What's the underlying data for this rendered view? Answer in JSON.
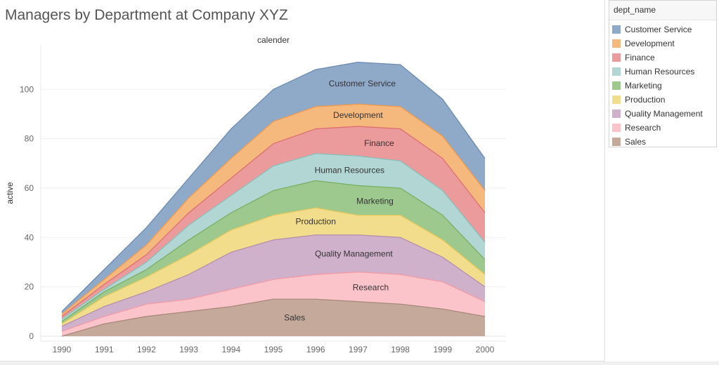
{
  "title": "Managers by Department at Company XYZ",
  "legend": {
    "title": "dept_name",
    "items": [
      {
        "label": "Customer Service",
        "color": "#8fa9c8"
      },
      {
        "label": "Development",
        "color": "#f5b87d"
      },
      {
        "label": "Finance",
        "color": "#eb9b9c"
      },
      {
        "label": "Human Resources",
        "color": "#b2d6d3"
      },
      {
        "label": "Marketing",
        "color": "#9ec98e"
      },
      {
        "label": "Production",
        "color": "#f2dd8c"
      },
      {
        "label": "Quality Management",
        "color": "#d0b1cb"
      },
      {
        "label": "Research",
        "color": "#fbc4ca"
      },
      {
        "label": "Sales",
        "color": "#c5aa9c"
      }
    ]
  },
  "chart_data": {
    "type": "area",
    "stacked": true,
    "title": "Managers by Department at Company XYZ",
    "column_header": "calender",
    "xlabel": "",
    "ylabel": "active",
    "x": [
      1990,
      1991,
      1992,
      1993,
      1994,
      1995,
      1996,
      1997,
      1998,
      1999,
      2000
    ],
    "x_ticks": [
      "1990",
      "1991",
      "1992",
      "1993",
      "1994",
      "1995",
      "1996",
      "1997",
      "1998",
      "1999",
      "2000"
    ],
    "y_ticks": [
      "0",
      "20",
      "40",
      "60",
      "80",
      "100"
    ],
    "ylim": [
      -2,
      118
    ],
    "stack_order": [
      "Sales",
      "Research",
      "Quality Management",
      "Production",
      "Marketing",
      "Human Resources",
      "Finance",
      "Development",
      "Customer Service"
    ],
    "series": [
      {
        "name": "Sales",
        "color": "#c5aa9c",
        "line": "#a8897a",
        "values": [
          0,
          5,
          8,
          10,
          12,
          15,
          15,
          14,
          13,
          11,
          8
        ]
      },
      {
        "name": "Research",
        "color": "#fbc4ca",
        "line": "#f29ba6",
        "values": [
          2,
          3,
          5,
          5,
          7,
          8,
          10,
          12,
          12,
          11,
          6
        ]
      },
      {
        "name": "Quality Management",
        "color": "#d0b1cb",
        "line": "#b58fae",
        "values": [
          2,
          4,
          5,
          10,
          15,
          16,
          16,
          15,
          15,
          10,
          6
        ]
      },
      {
        "name": "Production",
        "color": "#f2dd8c",
        "line": "#e2c75b",
        "values": [
          1,
          4,
          6,
          8,
          9,
          10,
          11,
          8,
          9,
          7,
          5
        ]
      },
      {
        "name": "Marketing",
        "color": "#9ec98e",
        "line": "#78b063",
        "values": [
          1,
          2,
          3,
          6,
          7,
          10,
          11,
          12,
          11,
          10,
          6
        ]
      },
      {
        "name": "Human Resources",
        "color": "#b2d6d3",
        "line": "#88bfbb",
        "values": [
          1,
          1,
          3,
          6,
          7,
          10,
          11,
          12,
          11,
          10,
          7
        ]
      },
      {
        "name": "Finance",
        "color": "#eb9b9c",
        "line": "#dd7072",
        "values": [
          1,
          2,
          3,
          5,
          7,
          9,
          10,
          12,
          13,
          13,
          12
        ]
      },
      {
        "name": "Development",
        "color": "#f5b87d",
        "line": "#ef9a4e",
        "values": [
          1,
          2,
          4,
          6,
          8,
          9,
          9,
          9,
          9,
          9,
          9
        ]
      },
      {
        "name": "Customer Service",
        "color": "#8fa9c8",
        "line": "#6b8bb3",
        "values": [
          1,
          4,
          7,
          8,
          12,
          13,
          15,
          17,
          17,
          15,
          13
        ]
      }
    ],
    "annotations": [
      {
        "text": "Customer Service",
        "series": "Customer Service",
        "x": 1997.1
      },
      {
        "text": "Development",
        "series": "Development",
        "x": 1997.0
      },
      {
        "text": "Finance",
        "series": "Finance",
        "x": 1997.5
      },
      {
        "text": "Human Resources",
        "series": "Human Resources",
        "x": 1996.8
      },
      {
        "text": "Marketing",
        "series": "Marketing",
        "x": 1997.4
      },
      {
        "text": "Production",
        "series": "Production",
        "x": 1996.0
      },
      {
        "text": "Quality Management",
        "series": "Quality Management",
        "x": 1996.9
      },
      {
        "text": "Research",
        "series": "Research",
        "x": 1997.3
      },
      {
        "text": "Sales",
        "series": "Sales",
        "x": 1995.5
      }
    ]
  }
}
